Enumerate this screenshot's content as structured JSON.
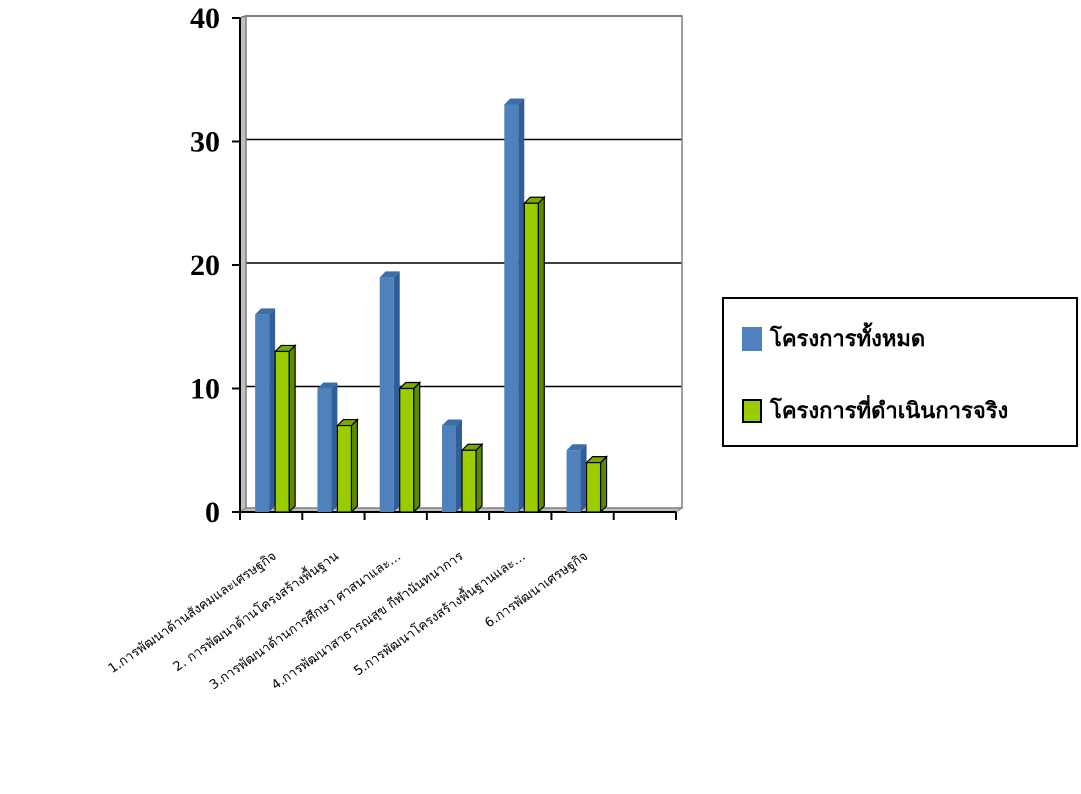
{
  "chart_data": {
    "type": "bar",
    "categories": [
      "1.การพัฒนาด้านสังคมและเศรษฐกิจ",
      "2. การพัฒนาด้านโครงสร้างพื้นฐาน",
      "3.การพัฒนาด้านการศึกษา ศาสนาและ…",
      "4.การพัฒนาสาธารณสุข กีฬานันทนาการ",
      "5.การพัฒนาโครงสร้างพื้นฐานและ…",
      "6.การพัฒนาเศรษฐกิจ",
      ""
    ],
    "series": [
      {
        "name": "โครงการทั้งหมด",
        "values": [
          16,
          10,
          19,
          7,
          33,
          5,
          null
        ],
        "color": "#4f81bd"
      },
      {
        "name": "โครงการที่ดำเนินการจริง",
        "values": [
          13,
          7,
          10,
          5,
          25,
          4,
          null
        ],
        "color": "#9bcc00"
      }
    ],
    "yticks": [
      "0",
      "10",
      "20",
      "30",
      "40"
    ],
    "ylim": [
      0,
      40
    ],
    "grid": true,
    "legend_position": "right",
    "title": "",
    "xlabel": "",
    "ylabel": ""
  }
}
